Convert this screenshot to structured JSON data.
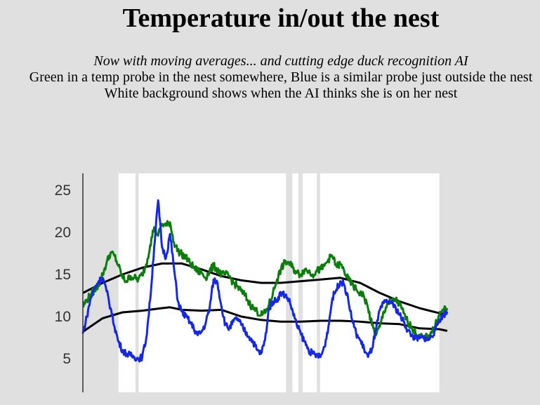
{
  "header": {
    "title": "Temperature in/out the nest",
    "subtitle_italic": "Now with moving averages... and cutting edge duck recognition AI",
    "line2": "Green in a temp probe in the nest somewhere, Blue is a similar probe just outside the nest",
    "line3": "White background shows when the AI thinks she is on her nest"
  },
  "chart_data": {
    "type": "line",
    "title": "Temperature in/out the nest",
    "xlabel": "",
    "ylabel": "",
    "ylim": [
      1,
      27
    ],
    "xlim": [
      0,
      100
    ],
    "y_ticks": [
      5,
      10,
      15,
      20,
      25
    ],
    "grid": false,
    "background": "#e0e0e0",
    "colors": {
      "nest": "#0a7d0a",
      "outside": "#1428e6",
      "moving_average": "#000000",
      "on_nest_background": "#ffffff",
      "gap_line": "#d8d8d8"
    },
    "on_nest_spans": [
      [
        9,
        13.3
      ],
      [
        14.1,
        51.3
      ],
      [
        52.9,
        54.4
      ],
      [
        55.5,
        59.1
      ],
      [
        59.9,
        90
      ]
    ],
    "series": [
      {
        "key": "nest",
        "points": [
          [
            0,
            11.2
          ],
          [
            1,
            12.0
          ],
          [
            2,
            12.6
          ],
          [
            3,
            13.2
          ],
          [
            4,
            13.8
          ],
          [
            5,
            15.0
          ],
          [
            6,
            16.4
          ],
          [
            7,
            17.6
          ],
          [
            8,
            17.2
          ],
          [
            9,
            16.0
          ],
          [
            10,
            14.6
          ],
          [
            11,
            14.2
          ],
          [
            12,
            14.8
          ],
          [
            13,
            14.6
          ],
          [
            14,
            14.4
          ],
          [
            15,
            15.0
          ],
          [
            16,
            16.2
          ],
          [
            17,
            18.5
          ],
          [
            18,
            20.6
          ],
          [
            19,
            19.6
          ],
          [
            20,
            21.0
          ],
          [
            21,
            20.8
          ],
          [
            22,
            21.2
          ],
          [
            23,
            18.8
          ],
          [
            24,
            17.8
          ],
          [
            25,
            17.4
          ],
          [
            26,
            17.0
          ],
          [
            27,
            16.4
          ],
          [
            28,
            15.8
          ],
          [
            29,
            15.4
          ],
          [
            30,
            15.2
          ],
          [
            31,
            14.6
          ],
          [
            32,
            15.4
          ],
          [
            33,
            16.0
          ],
          [
            34,
            15.6
          ],
          [
            35,
            15.0
          ],
          [
            36,
            15.0
          ],
          [
            37,
            14.8
          ],
          [
            38,
            14.0
          ],
          [
            39,
            13.6
          ],
          [
            40,
            13.0
          ],
          [
            41,
            12.5
          ],
          [
            42,
            11.6
          ],
          [
            43,
            11.0
          ],
          [
            44,
            10.6
          ],
          [
            45,
            10.2
          ],
          [
            46,
            10.4
          ],
          [
            47,
            11.4
          ],
          [
            48,
            12.8
          ],
          [
            49,
            14.4
          ],
          [
            50,
            15.6
          ],
          [
            51,
            16.4
          ],
          [
            52,
            16.4
          ],
          [
            53,
            15.8
          ],
          [
            54,
            15.2
          ],
          [
            55,
            15.0
          ],
          [
            56,
            15.6
          ],
          [
            57,
            15.4
          ],
          [
            58,
            15.0
          ],
          [
            59,
            15.4
          ],
          [
            60,
            15.6
          ],
          [
            61,
            16.0
          ],
          [
            62,
            16.8
          ],
          [
            63,
            17.2
          ],
          [
            64,
            16.0
          ],
          [
            65,
            16.2
          ],
          [
            66,
            15.4
          ],
          [
            67,
            14.4
          ],
          [
            68,
            13.8
          ],
          [
            69,
            13.2
          ],
          [
            70,
            12.8
          ],
          [
            71,
            12.4
          ],
          [
            72,
            11.0
          ],
          [
            73,
            9.0
          ],
          [
            74,
            7.8
          ],
          [
            75,
            8.8
          ],
          [
            76,
            10.6
          ],
          [
            77,
            11.6
          ],
          [
            78,
            11.8
          ],
          [
            79,
            12.0
          ],
          [
            80,
            11.4
          ],
          [
            81,
            10.4
          ],
          [
            82,
            9.4
          ],
          [
            83,
            8.8
          ],
          [
            84,
            8.0
          ],
          [
            85,
            7.6
          ],
          [
            86,
            7.4
          ],
          [
            87,
            7.6
          ],
          [
            88,
            8.2
          ],
          [
            89,
            9.0
          ],
          [
            90,
            10.2
          ],
          [
            91,
            10.8
          ],
          [
            92,
            11.0
          ]
        ]
      },
      {
        "key": "outside",
        "points": [
          [
            0,
            8.0
          ],
          [
            1,
            10.0
          ],
          [
            2,
            12.2
          ],
          [
            3,
            13.4
          ],
          [
            4,
            14.2
          ],
          [
            5,
            14.6
          ],
          [
            6,
            13.0
          ],
          [
            7,
            11.0
          ],
          [
            8,
            8.8
          ],
          [
            9,
            7.0
          ],
          [
            10,
            6.0
          ],
          [
            11,
            5.6
          ],
          [
            12,
            5.4
          ],
          [
            13,
            5.2
          ],
          [
            14,
            5.0
          ],
          [
            15,
            5.2
          ],
          [
            16,
            7.4
          ],
          [
            17,
            12.0
          ],
          [
            18,
            18.2
          ],
          [
            19,
            23.8
          ],
          [
            20,
            18.2
          ],
          [
            21,
            17.0
          ],
          [
            22,
            19.8
          ],
          [
            23,
            15.8
          ],
          [
            24,
            11.8
          ],
          [
            25,
            10.6
          ],
          [
            26,
            10.0
          ],
          [
            27,
            9.4
          ],
          [
            28,
            8.6
          ],
          [
            29,
            7.8
          ],
          [
            30,
            8.2
          ],
          [
            31,
            9.2
          ],
          [
            32,
            11.0
          ],
          [
            33,
            14.4
          ],
          [
            34,
            14.0
          ],
          [
            35,
            11.2
          ],
          [
            36,
            9.0
          ],
          [
            37,
            8.6
          ],
          [
            38,
            9.4
          ],
          [
            39,
            9.8
          ],
          [
            40,
            9.0
          ],
          [
            41,
            8.2
          ],
          [
            42,
            7.6
          ],
          [
            43,
            7.0
          ],
          [
            44,
            6.0
          ],
          [
            45,
            5.6
          ],
          [
            46,
            7.2
          ],
          [
            47,
            11.0
          ],
          [
            48,
            11.8
          ],
          [
            49,
            12.0
          ],
          [
            50,
            12.8
          ],
          [
            51,
            12.6
          ],
          [
            52,
            12.0
          ],
          [
            53,
            10.6
          ],
          [
            54,
            9.0
          ],
          [
            55,
            8.0
          ],
          [
            56,
            7.0
          ],
          [
            57,
            6.0
          ],
          [
            58,
            5.6
          ],
          [
            59,
            5.4
          ],
          [
            60,
            5.2
          ],
          [
            61,
            6.4
          ],
          [
            62,
            8.8
          ],
          [
            63,
            12.2
          ],
          [
            64,
            13.2
          ],
          [
            65,
            14.2
          ],
          [
            66,
            13.8
          ],
          [
            67,
            12.0
          ],
          [
            68,
            9.6
          ],
          [
            69,
            8.0
          ],
          [
            70,
            7.2
          ],
          [
            71,
            6.2
          ],
          [
            72,
            5.2
          ],
          [
            73,
            6.2
          ],
          [
            74,
            8.4
          ],
          [
            75,
            10.8
          ],
          [
            76,
            11.6
          ],
          [
            77,
            11.8
          ],
          [
            78,
            11.6
          ],
          [
            79,
            11.0
          ],
          [
            80,
            10.2
          ],
          [
            81,
            9.4
          ],
          [
            82,
            8.4
          ],
          [
            83,
            7.8
          ],
          [
            84,
            7.4
          ],
          [
            85,
            7.4
          ],
          [
            86,
            7.6
          ],
          [
            87,
            7.2
          ],
          [
            88,
            7.6
          ],
          [
            89,
            8.4
          ],
          [
            90,
            9.6
          ],
          [
            91,
            10.2
          ],
          [
            92,
            10.6
          ]
        ]
      },
      {
        "key": "nest_ma",
        "points": [
          [
            0,
            12.8
          ],
          [
            5,
            14.0
          ],
          [
            10,
            15.0
          ],
          [
            15,
            15.8
          ],
          [
            20,
            16.3
          ],
          [
            25,
            16.3
          ],
          [
            30,
            15.6
          ],
          [
            35,
            14.8
          ],
          [
            40,
            14.3
          ],
          [
            45,
            14.0
          ],
          [
            50,
            14.0
          ],
          [
            55,
            14.2
          ],
          [
            60,
            14.4
          ],
          [
            65,
            14.6
          ],
          [
            70,
            14.0
          ],
          [
            75,
            12.8
          ],
          [
            80,
            11.8
          ],
          [
            85,
            11.0
          ],
          [
            90,
            10.4
          ],
          [
            92,
            10.3
          ]
        ]
      },
      {
        "key": "outside_ma",
        "points": [
          [
            0,
            8.2
          ],
          [
            5,
            9.8
          ],
          [
            10,
            10.5
          ],
          [
            15,
            10.7
          ],
          [
            20,
            11.0
          ],
          [
            22,
            11.1
          ],
          [
            25,
            10.8
          ],
          [
            30,
            10.7
          ],
          [
            35,
            10.8
          ],
          [
            40,
            10.0
          ],
          [
            45,
            9.6
          ],
          [
            50,
            9.4
          ],
          [
            55,
            9.4
          ],
          [
            60,
            9.5
          ],
          [
            65,
            9.5
          ],
          [
            70,
            9.4
          ],
          [
            75,
            9.2
          ],
          [
            80,
            9.1
          ],
          [
            85,
            8.6
          ],
          [
            90,
            8.5
          ],
          [
            92,
            8.3
          ]
        ]
      }
    ]
  }
}
